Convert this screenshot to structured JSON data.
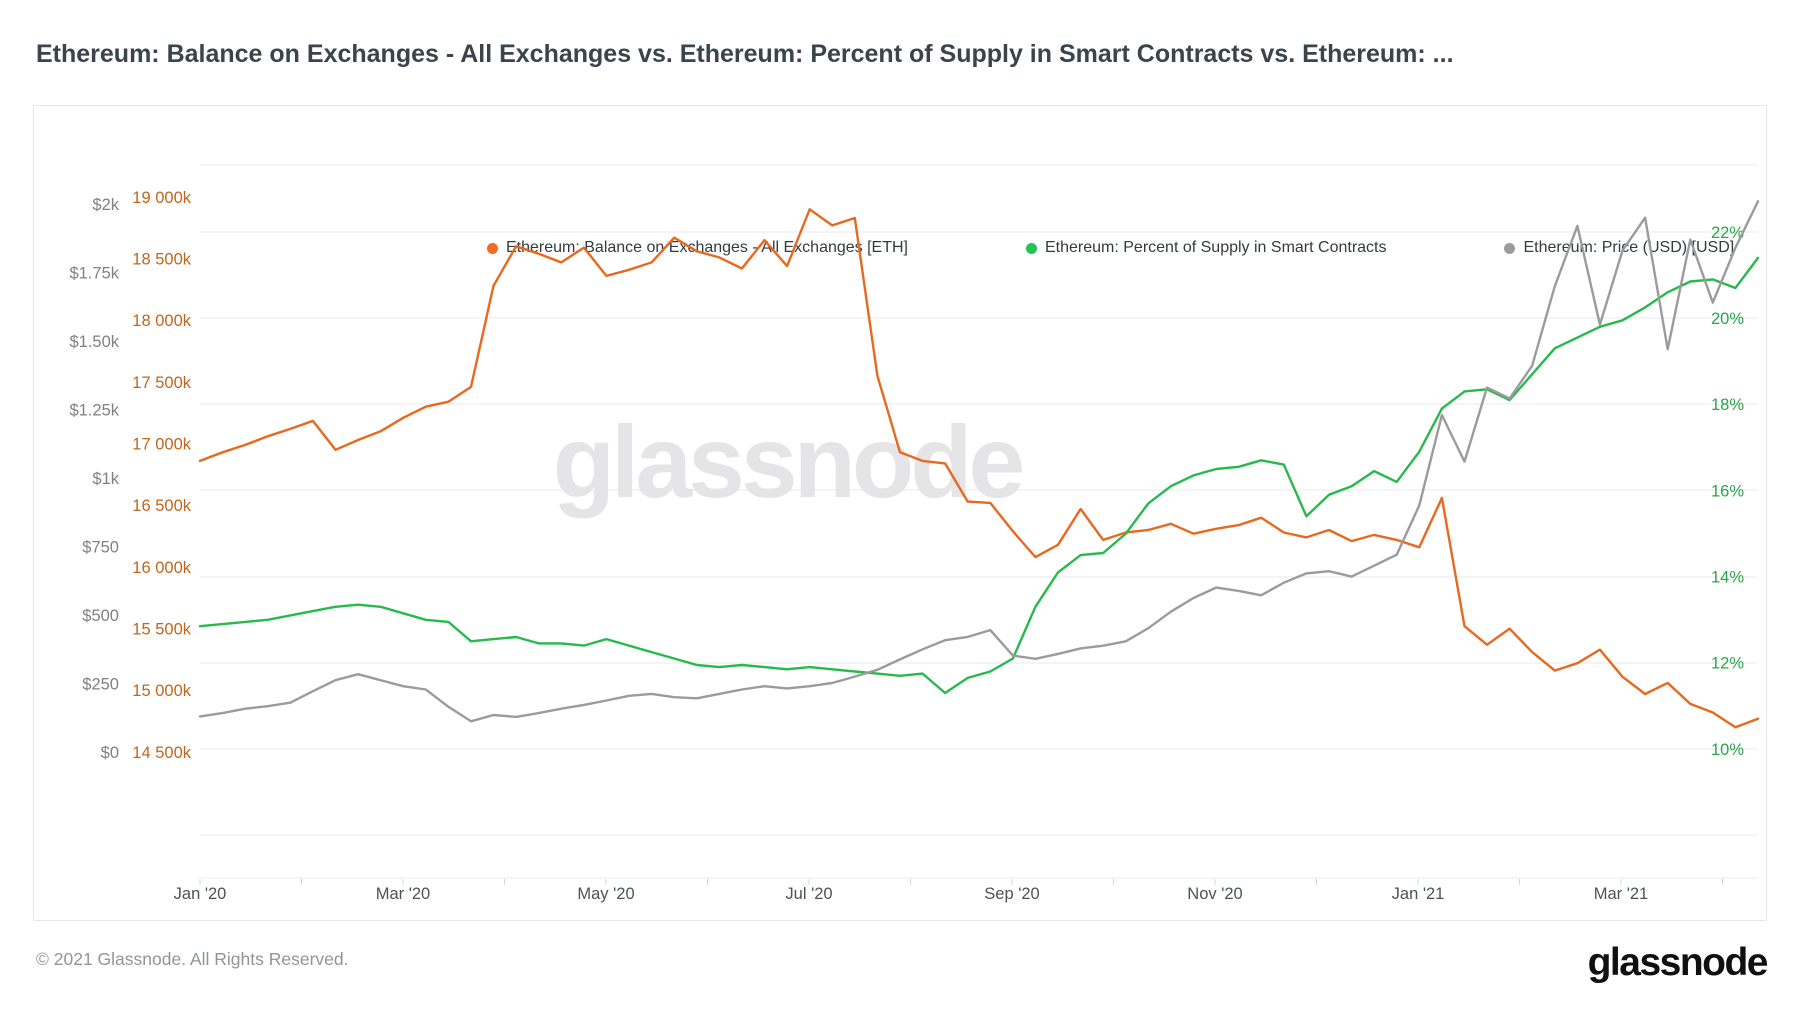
{
  "header": {
    "title": "Ethereum: Balance on Exchanges - All Exchanges vs. Ethereum: Percent of Supply in Smart Contracts vs. Ethereum: ..."
  },
  "watermark": "glassnode",
  "footer": {
    "copyright": "© 2021 Glassnode. All Rights Reserved.",
    "logo": "glassnode"
  },
  "chart_data": {
    "type": "line",
    "title": "Ethereum: Balance on Exchanges - All Exchanges vs. Ethereum: Percent of Supply in Smart Contracts vs. Ethereum: Price (USD)",
    "x_tick_labels": [
      "Jan '20",
      "Mar '20",
      "May '20",
      "Jul '20",
      "Sep '20",
      "Nov '20",
      "Jan '21",
      "Mar '21"
    ],
    "x_range_note": "Jan 2020 through mid-April 2021, ~weekly samples",
    "grid": true,
    "legend_position": "top",
    "axes": {
      "balance": {
        "side": "left",
        "unit": "thousand ETH",
        "label_color": "#c0661c",
        "tick_labels": [
          "19 000k",
          "18 500k",
          "18 000k",
          "17 500k",
          "17 000k",
          "16 500k",
          "16 000k",
          "15 500k",
          "15 000k",
          "14 500k"
        ],
        "tick_values": [
          19000,
          18500,
          18000,
          17500,
          17000,
          16500,
          16000,
          15500,
          15000,
          14500
        ]
      },
      "price": {
        "side": "left-outer",
        "unit": "USD",
        "label_color": "#808080",
        "tick_labels": [
          "$2k",
          "$1.75k",
          "$1.50k",
          "$1.25k",
          "$1k",
          "$750",
          "$500",
          "$250",
          "$0"
        ],
        "tick_values": [
          2000,
          1750,
          1500,
          1250,
          1000,
          750,
          500,
          250,
          0
        ]
      },
      "percent": {
        "side": "right",
        "unit": "%",
        "label_color": "#2aa54a",
        "tick_labels": [
          "22%",
          "20%",
          "18%",
          "16%",
          "14%",
          "12%",
          "10%"
        ],
        "tick_values": [
          22,
          20,
          18,
          16,
          14,
          12,
          10
        ]
      }
    },
    "series": [
      {
        "name": "Ethereum: Balance on Exchanges - All Exchanges [ETH]",
        "axis": "balance",
        "color": "#e7691e",
        "dot_color": "#f26b21",
        "values": [
          16860,
          16930,
          16990,
          17060,
          17120,
          17185,
          16950,
          17030,
          17100,
          17210,
          17300,
          17340,
          17460,
          18280,
          18600,
          18540,
          18470,
          18590,
          18360,
          18410,
          18470,
          18670,
          18560,
          18510,
          18420,
          18650,
          18440,
          18900,
          18770,
          18830,
          17550,
          16930,
          16860,
          16840,
          16530,
          16520,
          16290,
          16080,
          16180,
          16470,
          16220,
          16280,
          16300,
          16350,
          16270,
          16310,
          16340,
          16400,
          16280,
          16240,
          16300,
          16210,
          16260,
          16220,
          16160,
          16560,
          15520,
          15370,
          15500,
          15310,
          15160,
          15220,
          15330,
          15110,
          14970,
          15060,
          14890,
          14820,
          14700,
          14770
        ]
      },
      {
        "name": "Ethereum: Percent of Supply in Smart Contracts",
        "axis": "percent",
        "color": "#27b94d",
        "dot_color": "#25c353",
        "values": [
          12.85,
          12.9,
          12.95,
          13.0,
          13.1,
          13.2,
          13.3,
          13.35,
          13.3,
          13.15,
          13.0,
          12.95,
          12.5,
          12.55,
          12.6,
          12.45,
          12.45,
          12.4,
          12.55,
          12.4,
          12.25,
          12.1,
          11.95,
          11.9,
          11.95,
          11.9,
          11.85,
          11.9,
          11.85,
          11.8,
          11.75,
          11.7,
          11.75,
          11.3,
          11.65,
          11.8,
          12.1,
          13.3,
          14.1,
          14.5,
          14.55,
          15.0,
          15.7,
          16.1,
          16.35,
          16.5,
          16.55,
          16.7,
          16.6,
          15.4,
          15.9,
          16.1,
          16.45,
          16.2,
          16.9,
          17.9,
          18.3,
          18.35,
          18.1,
          18.7,
          19.3,
          19.55,
          19.8,
          19.95,
          20.25,
          20.6,
          20.85,
          20.9,
          20.7,
          21.4
        ]
      },
      {
        "name": "Ethereum: Price (USD) [USD]",
        "axis": "price",
        "color": "#9b9b9b",
        "dot_color": "#9b9b9b",
        "values": [
          130,
          142,
          158,
          167,
          180,
          222,
          262,
          284,
          262,
          240,
          228,
          165,
          112,
          135,
          128,
          142,
          158,
          172,
          188,
          205,
          212,
          200,
          196,
          212,
          228,
          240,
          232,
          240,
          252,
          275,
          300,
          338,
          375,
          408,
          420,
          445,
          352,
          340,
          358,
          378,
          388,
          404,
          452,
          512,
          562,
          600,
          588,
          572,
          618,
          652,
          660,
          640,
          680,
          720,
          900,
          1230,
          1060,
          1330,
          1290,
          1410,
          1700,
          1920,
          1560,
          1830,
          1950,
          1470,
          1870,
          1640,
          1840,
          2010
        ]
      }
    ]
  }
}
